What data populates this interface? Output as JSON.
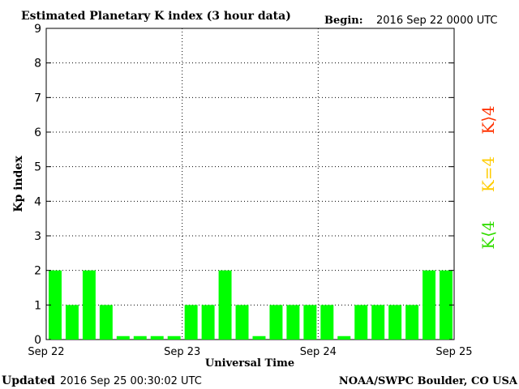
{
  "chart_data": {
    "type": "bar",
    "title": "Estimated Planetary K index (3 hour data)",
    "begin_label": "Begin:",
    "begin_value": "2016 Sep 22 0000 UTC",
    "xlabel": "Universal Time",
    "ylabel": "Kp index",
    "ylim": [
      0,
      9
    ],
    "yticks": [
      "0",
      "1",
      "2",
      "3",
      "4",
      "5",
      "6",
      "7",
      "8",
      "9"
    ],
    "xticks": [
      "Sep 22",
      "Sep 23",
      "Sep 24",
      "Sep 25"
    ],
    "grid": true,
    "values": [
      2,
      1,
      2,
      1,
      0.1,
      0.1,
      0.1,
      0.1,
      1,
      1,
      2,
      1,
      0.1,
      1,
      1,
      1,
      1,
      0.1,
      1,
      1,
      1,
      1,
      2,
      2
    ],
    "colors": {
      "bar_below_4": "#00ff00",
      "bar_equal_4": "#ffcc00",
      "bar_above_4": "#ff3300"
    },
    "legend": [
      {
        "label": "K<4",
        "color": "#33dd00"
      },
      {
        "label": "K=4",
        "color": "#ffcc00"
      },
      {
        "label": "K>4",
        "color": "#ff3300"
      }
    ]
  },
  "footer": {
    "updated_label": "Updated",
    "updated_value": "2016 Sep 25 00:30:02 UTC",
    "source": "NOAA/SWPC Boulder, CO USA"
  }
}
